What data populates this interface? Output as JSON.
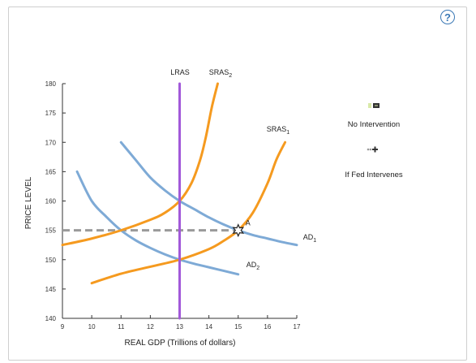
{
  "chart_data": {
    "type": "line",
    "xlabel": "REAL GDP (Trillions of dollars)",
    "ylabel": "PRICE LEVEL",
    "xlim": [
      9,
      17
    ],
    "ylim": [
      140,
      180
    ],
    "x_ticks": [
      "9",
      "10",
      "11",
      "12",
      "13",
      "14",
      "15",
      "16",
      "17"
    ],
    "y_ticks": [
      "140",
      "145",
      "150",
      "155",
      "160",
      "165",
      "170",
      "175",
      "180"
    ],
    "grid": false,
    "series": [
      {
        "name": "LRAS",
        "label": "LRAS",
        "color": "#a259d9",
        "points": [
          [
            13,
            140
          ],
          [
            13,
            180
          ]
        ]
      },
      {
        "name": "SRAS2",
        "label": "SRAS",
        "label_sub": "2",
        "color": "#f59a1f",
        "points": [
          [
            9,
            152.5
          ],
          [
            10,
            153.6
          ],
          [
            11,
            155
          ],
          [
            12,
            156.8
          ],
          [
            12.5,
            158
          ],
          [
            13,
            160
          ],
          [
            13.4,
            163
          ],
          [
            13.7,
            167
          ],
          [
            13.9,
            171
          ],
          [
            14.1,
            176
          ],
          [
            14.3,
            180
          ]
        ]
      },
      {
        "name": "SRAS1",
        "label": "SRAS",
        "label_sub": "1",
        "color": "#f59a1f",
        "points": [
          [
            10,
            146
          ],
          [
            11,
            147.6
          ],
          [
            12,
            148.8
          ],
          [
            13,
            150
          ],
          [
            14,
            151.8
          ],
          [
            14.5,
            153.2
          ],
          [
            15,
            155
          ],
          [
            15.5,
            158
          ],
          [
            16,
            163
          ],
          [
            16.3,
            167
          ],
          [
            16.6,
            170
          ]
        ]
      },
      {
        "name": "AD1",
        "label": "AD",
        "label_sub": "1",
        "color": "#7eaad6",
        "points": [
          [
            11,
            170
          ],
          [
            11.5,
            167
          ],
          [
            12,
            164
          ],
          [
            12.5,
            161.8
          ],
          [
            13,
            160
          ],
          [
            13.5,
            158.6
          ],
          [
            14,
            157.2
          ],
          [
            14.5,
            156
          ],
          [
            15,
            155
          ],
          [
            15.5,
            154.2
          ],
          [
            16,
            153.6
          ],
          [
            16.5,
            153
          ],
          [
            17,
            152.5
          ]
        ]
      },
      {
        "name": "AD2",
        "label": "AD",
        "label_sub": "2",
        "color": "#7eaad6",
        "points": [
          [
            9.5,
            165
          ],
          [
            10,
            160
          ],
          [
            10.5,
            157.3
          ],
          [
            11,
            155
          ],
          [
            11.5,
            153.3
          ],
          [
            12,
            152
          ],
          [
            12.5,
            150.9
          ],
          [
            13,
            150
          ],
          [
            13.5,
            149.3
          ],
          [
            14,
            148.7
          ],
          [
            14.5,
            148.1
          ],
          [
            15,
            147.5
          ]
        ]
      }
    ],
    "reference_lines": [
      {
        "type": "horizontal",
        "y": 155,
        "x_from": 9,
        "x_to": 15,
        "style": "dashed",
        "color": "#9a9a9a"
      }
    ],
    "points": [
      {
        "label": "A",
        "x": 15,
        "y": 155,
        "marker": "star"
      }
    ],
    "legend": {
      "placement": "right",
      "items": [
        {
          "label": "No Intervention",
          "swatch_colors": [
            "#d9e9a8",
            "#333333"
          ]
        },
        {
          "label": "If Fed Intervenes",
          "swatch_colors": [
            "#e0e0e0",
            "#333333"
          ]
        }
      ]
    }
  },
  "help_button": {
    "symbol": "?"
  }
}
